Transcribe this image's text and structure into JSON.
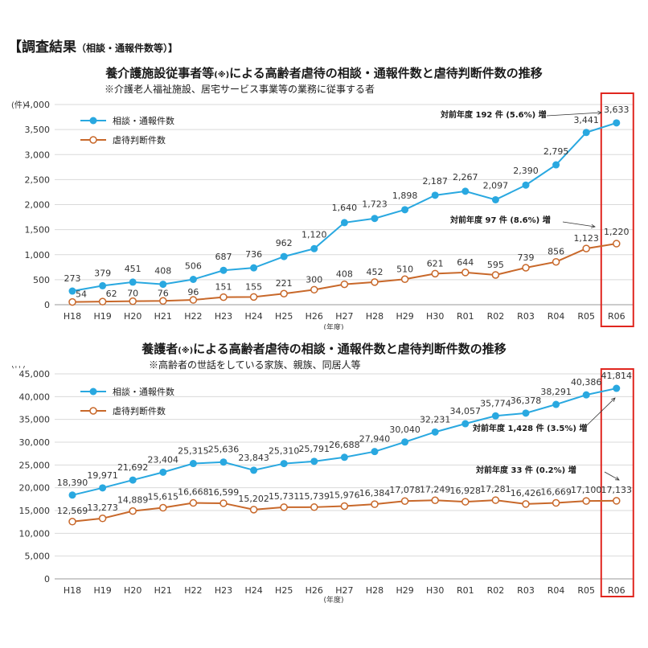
{
  "heading": {
    "main": "【調査結果",
    "sub": "（相談・通報件数等）】"
  },
  "colors": {
    "consult": "#29a8e0",
    "abuse": "#c8682a",
    "highlight": "#e0261f",
    "axis": "#999999",
    "grid": "#d9d9d9"
  },
  "chart_data": [
    {
      "type": "line",
      "title_main": "養介護施設従事者等",
      "title_mark": "(※)",
      "title_rest": "による高齢者虐待の相談・通報件数と虐待判断件数の推移",
      "note": "※介護老人福祉施設、居宅サービス事業等の業務に従事する者",
      "ylabel": "(件)",
      "xlabel": "(年度)",
      "ylim": [
        0,
        4000
      ],
      "yticks": [
        0,
        500,
        1000,
        1500,
        2000,
        2500,
        3000,
        3500,
        4000
      ],
      "ytick_labels": [
        "0",
        "500",
        "1,000",
        "1,500",
        "2,000",
        "2,500",
        "3,000",
        "3,500",
        "4,000"
      ],
      "categories": [
        "H18",
        "H19",
        "H20",
        "H21",
        "H22",
        "H23",
        "H24",
        "H25",
        "H26",
        "H27",
        "H28",
        "H29",
        "H30",
        "R01",
        "R02",
        "R03",
        "R04",
        "R05",
        "R06"
      ],
      "series": [
        {
          "name": "相談・通報件数",
          "values": [
            273,
            379,
            451,
            408,
            506,
            687,
            736,
            962,
            1120,
            1640,
            1723,
            1898,
            2187,
            2267,
            2097,
            2390,
            2795,
            3441,
            3633
          ],
          "labels": [
            "273",
            "379",
            "451",
            "408",
            "506",
            "687",
            "736",
            "962",
            "1,120",
            "1,640",
            "1,723",
            "1,898",
            "2,187",
            "2,267",
            "2,097",
            "2,390",
            "2,795",
            "3,441",
            "3,633"
          ]
        },
        {
          "name": "虐待判断件数",
          "values": [
            54,
            62,
            70,
            76,
            96,
            151,
            155,
            221,
            300,
            408,
            452,
            510,
            621,
            644,
            595,
            739,
            856,
            1123,
            1220
          ],
          "labels": [
            "54",
            "62",
            "70",
            "76",
            "96",
            "151",
            "155",
            "221",
            "300",
            "408",
            "452",
            "510",
            "621",
            "644",
            "595",
            "739",
            "856",
            "1,123",
            "1,220"
          ]
        }
      ],
      "annotations": [
        "対前年度 192 件 (5.6%) 増",
        "対前年度 97 件 (8.6%) 増"
      ],
      "legend": "top-left"
    },
    {
      "type": "line",
      "title_main": "養護者",
      "title_mark": "(※)",
      "title_rest": "による高齢者虐待の相談・通報件数と虐待判断件数の推移",
      "note": "※高齢者の世話をしている家族、親族、同居人等",
      "ylabel": "(件)",
      "xlabel": "(年度)",
      "ylim": [
        0,
        45000
      ],
      "yticks": [
        0,
        5000,
        10000,
        15000,
        20000,
        25000,
        30000,
        35000,
        40000,
        45000
      ],
      "ytick_labels": [
        "0",
        "5,000",
        "10,000",
        "15,000",
        "20,000",
        "25,000",
        "30,000",
        "35,000",
        "40,000",
        "45,000"
      ],
      "categories": [
        "H18",
        "H19",
        "H20",
        "H21",
        "H22",
        "H23",
        "H24",
        "H25",
        "H26",
        "H27",
        "H28",
        "H29",
        "H30",
        "R01",
        "R02",
        "R03",
        "R04",
        "R05",
        "R06"
      ],
      "series": [
        {
          "name": "相談・通報件数",
          "values": [
            18390,
            19971,
            21692,
            23404,
            25315,
            25636,
            23843,
            25310,
            25791,
            26688,
            27940,
            30040,
            32231,
            34057,
            35774,
            36378,
            38291,
            40386,
            41814
          ],
          "labels": [
            "18,390",
            "19,971",
            "21,692",
            "23,404",
            "25,315",
            "25,636",
            "23,843",
            "25,310",
            "25,791",
            "26,688",
            "27,940",
            "30,040",
            "32,231",
            "34,057",
            "35,774",
            "36,378",
            "38,291",
            "40,386",
            "41,814"
          ]
        },
        {
          "name": "虐待判断件数",
          "values": [
            12569,
            13273,
            14889,
            15615,
            16668,
            16599,
            15202,
            15731,
            15739,
            15976,
            16384,
            17078,
            17249,
            16928,
            17281,
            16426,
            16669,
            17100,
            17133
          ],
          "labels": [
            "12,569",
            "13,273",
            "14,889",
            "15,615",
            "16,668",
            "16,599",
            "15,202",
            "15,731",
            "15,739",
            "15,976",
            "16,384",
            "17,078",
            "17,249",
            "16,928",
            "17,281",
            "16,426",
            "16,669",
            "17,100",
            "17,133"
          ]
        }
      ],
      "annotations": [
        "対前年度 1,428 件 (3.5%) 増",
        "対前年度 33 件 (0.2%) 増"
      ],
      "legend": "top-left"
    }
  ]
}
